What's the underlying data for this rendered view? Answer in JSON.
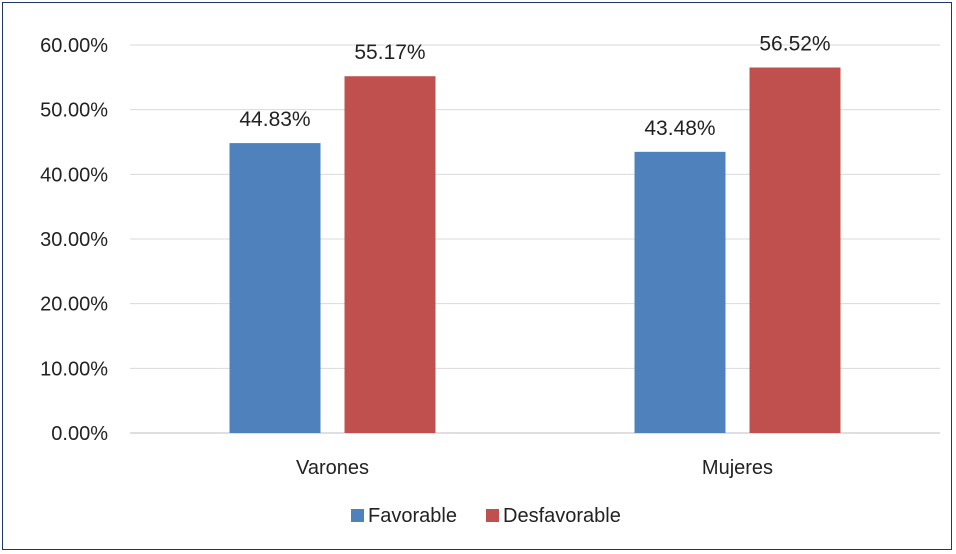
{
  "chart_data": {
    "type": "bar",
    "categories": [
      "Varones",
      "Mujeres"
    ],
    "series": [
      {
        "name": "Favorable",
        "color": "#4f81bd",
        "values": [
          44.83,
          43.48
        ],
        "labels": [
          "44.83%",
          "43.48%"
        ]
      },
      {
        "name": "Desfavorable",
        "color": "#c0504d",
        "values": [
          55.17,
          56.52
        ],
        "labels": [
          "55.17%",
          "56.52%"
        ]
      }
    ],
    "ylim": [
      0,
      60
    ],
    "yticks": [
      0,
      10,
      20,
      30,
      40,
      50,
      60
    ],
    "ytick_labels": [
      "0.00%",
      "10.00%",
      "20.00%",
      "30.00%",
      "40.00%",
      "50.00%",
      "60.00%"
    ],
    "grid": true,
    "legend": "bottom"
  }
}
